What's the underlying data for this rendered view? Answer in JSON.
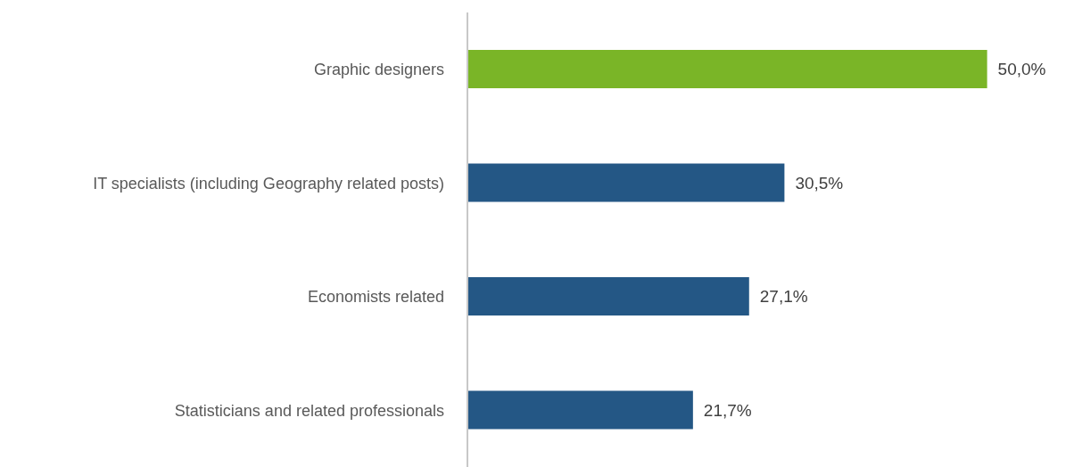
{
  "chart_data": {
    "type": "bar",
    "orientation": "horizontal",
    "categories": [
      "Graphic designers",
      "IT specialists (including Geography related posts)",
      "Economists related",
      "Statisticians and related professionals"
    ],
    "values": [
      50.0,
      30.5,
      27.1,
      21.7
    ],
    "colors": [
      "#7ab527",
      "#245785",
      "#245785",
      "#245785"
    ],
    "value_labels": [
      "50,0%",
      "30,5%",
      "27,1%",
      "21,7%"
    ],
    "grid": false,
    "legend": false
  }
}
